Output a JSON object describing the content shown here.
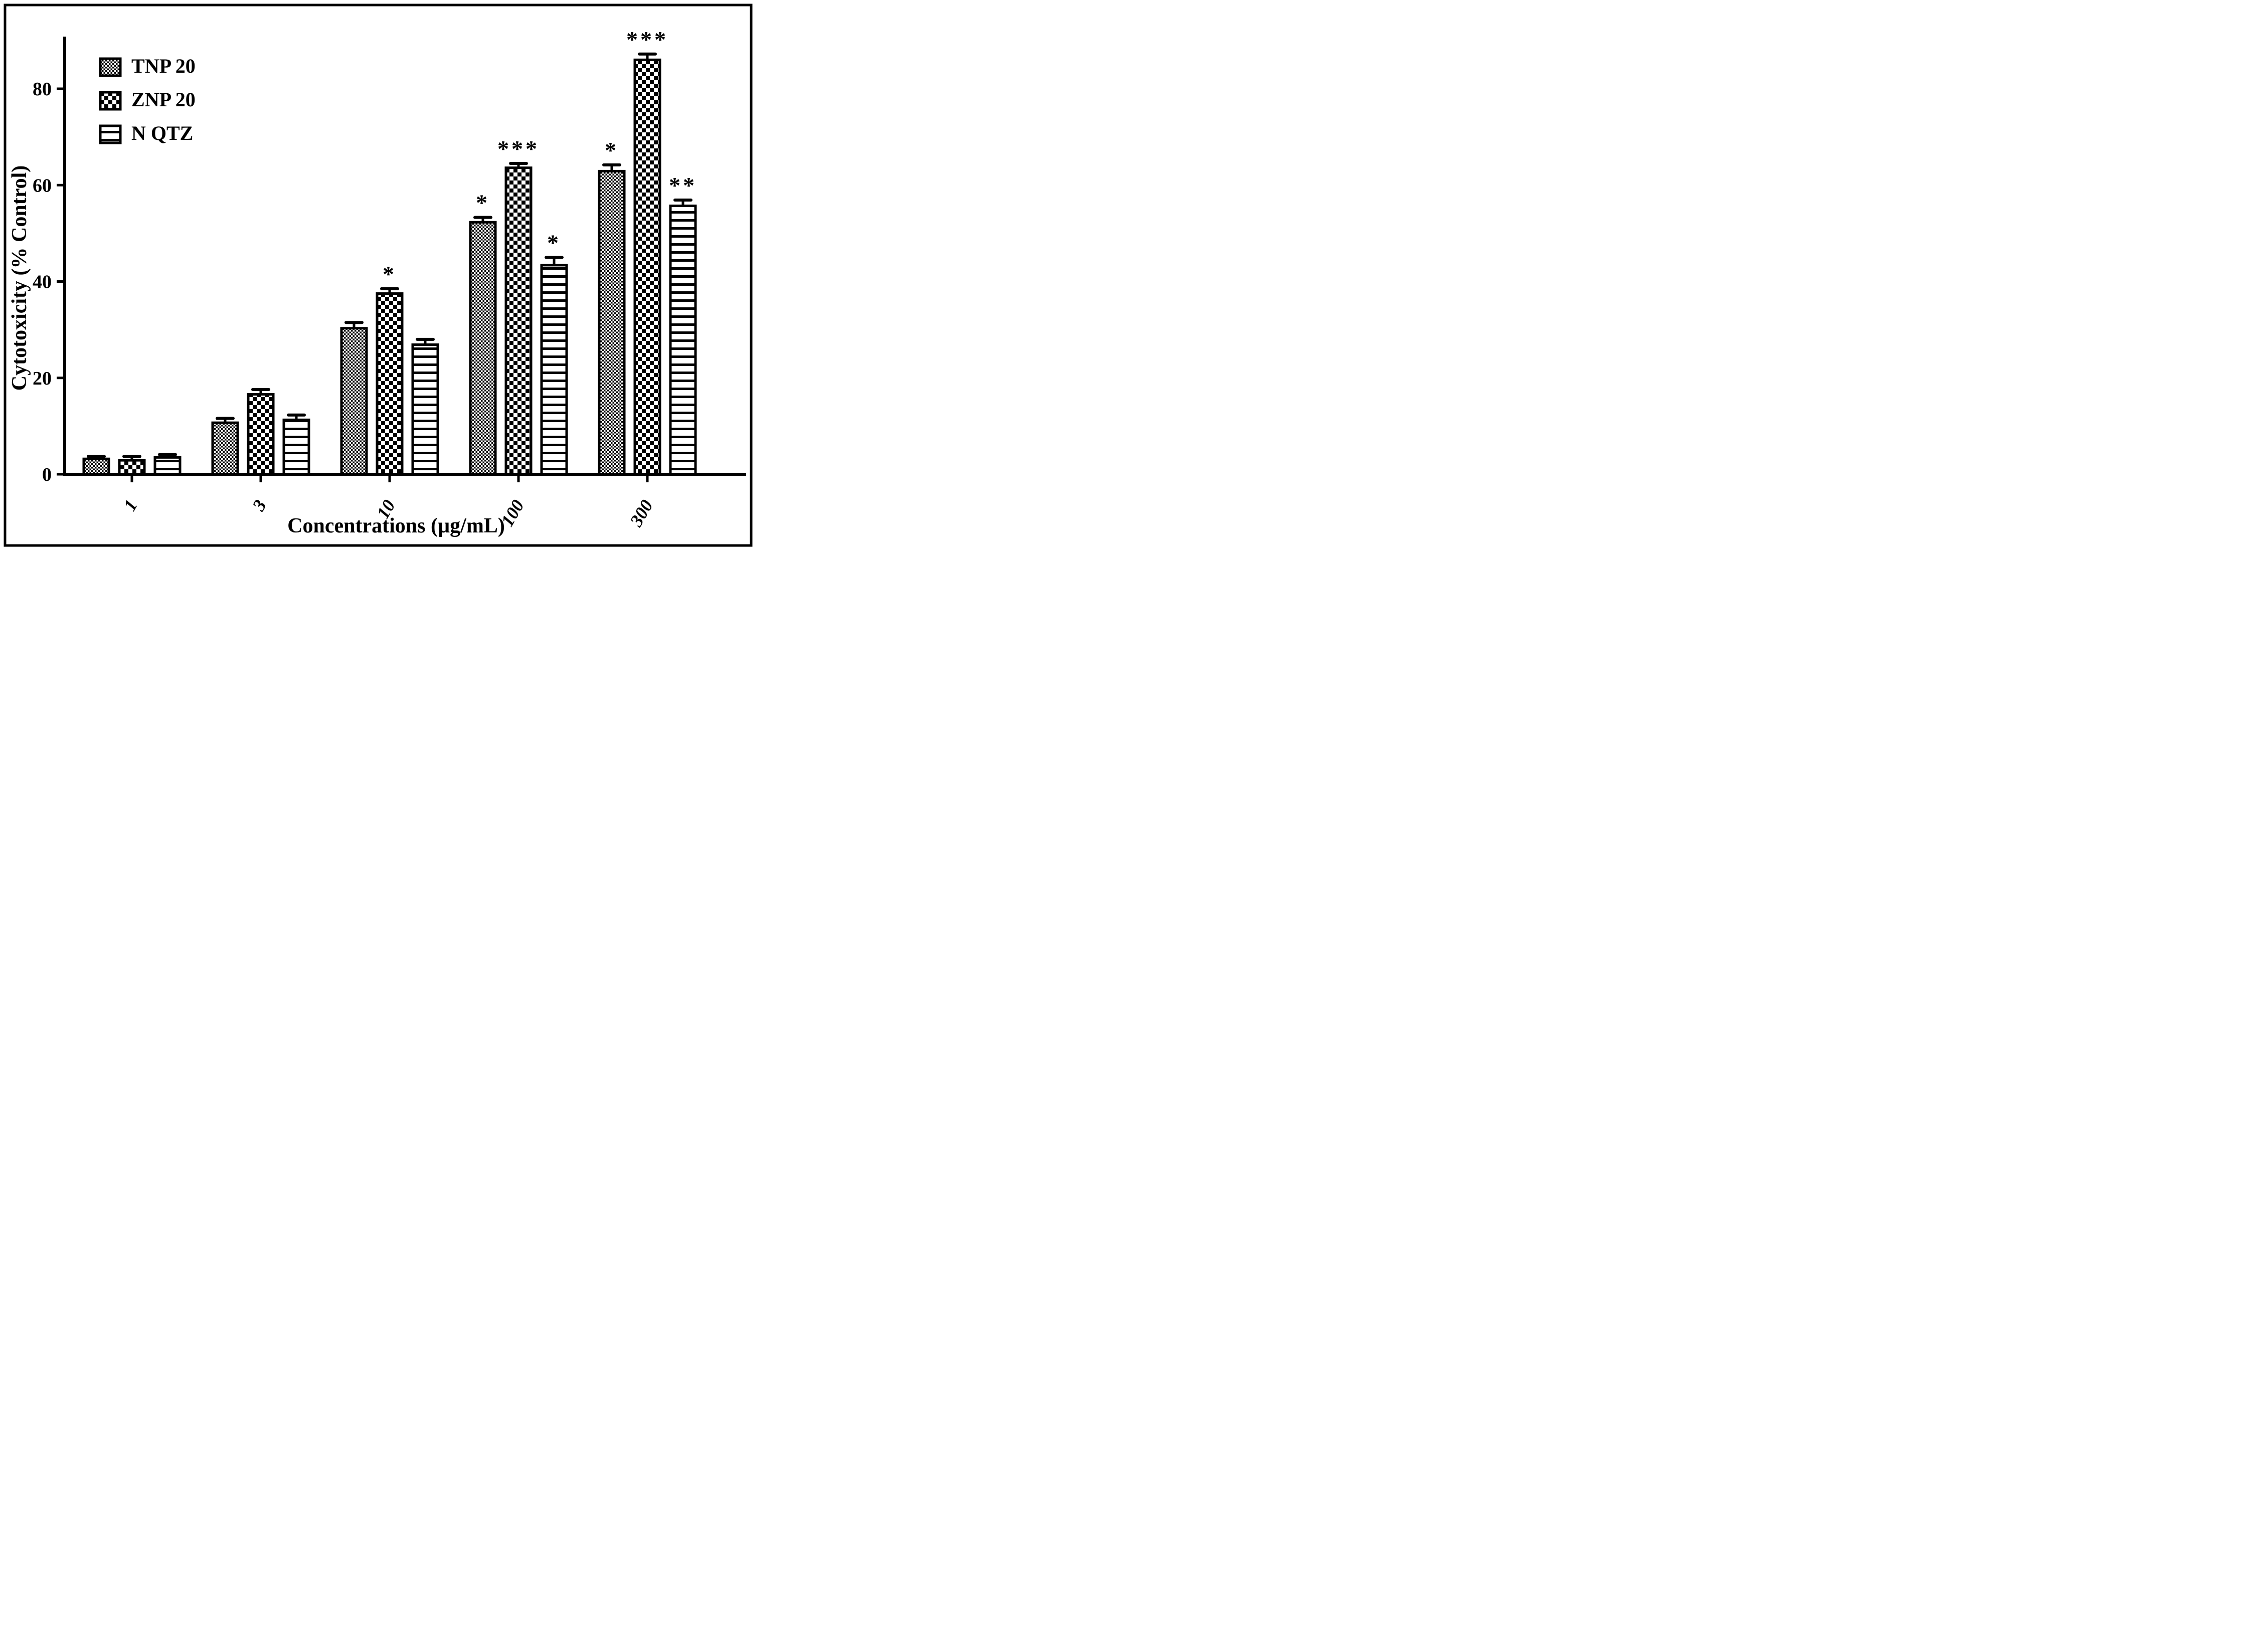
{
  "figure": {
    "background": "#ffffff",
    "ink_color": "#000000"
  },
  "chart_data": {
    "type": "bar",
    "title": "",
    "xlabel": "Concentrations (µg/mL)",
    "ylabel": "Cytotoxicity (% Control)",
    "categories": [
      "1",
      "3",
      "10",
      "100",
      "300"
    ],
    "yticks": [
      0,
      20,
      40,
      60,
      80
    ],
    "ylim": [
      0,
      93
    ],
    "grid": false,
    "legend_position": "top-left-inside",
    "series": [
      {
        "name": "TNP 20",
        "pattern": "fine-checkerboard",
        "values": [
          3.2,
          10.7,
          30.3,
          52.3,
          62.9
        ],
        "errors": [
          0.5,
          0.9,
          1.2,
          1.0,
          1.3
        ],
        "significance": [
          "",
          "",
          "",
          "*",
          "*"
        ]
      },
      {
        "name": "ZNP 20",
        "pattern": "coarse-checkerboard",
        "values": [
          2.9,
          16.6,
          37.5,
          63.6,
          86.0
        ],
        "errors": [
          0.8,
          1.0,
          1.0,
          0.9,
          1.2
        ],
        "significance": [
          "",
          "",
          "*",
          "***",
          "***"
        ]
      },
      {
        "name": "N QTZ",
        "pattern": "horizontal-lines",
        "values": [
          3.5,
          11.3,
          26.9,
          43.4,
          55.7
        ],
        "errors": [
          0.6,
          1.0,
          1.1,
          1.6,
          1.2
        ],
        "significance": [
          "",
          "",
          "",
          "*",
          "**"
        ]
      }
    ]
  }
}
